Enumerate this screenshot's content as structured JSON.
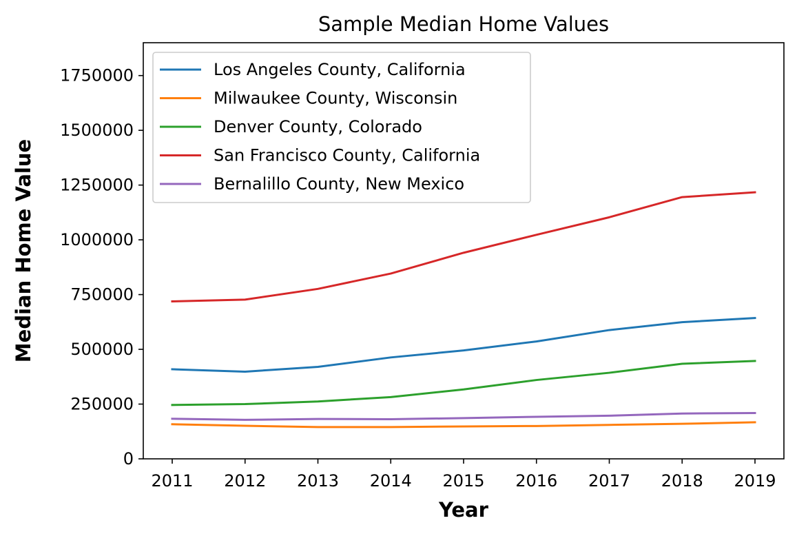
{
  "chart_data": {
    "type": "line",
    "title": "Sample Median Home Values",
    "xlabel": "Year",
    "ylabel": "Median Home Value",
    "x": [
      2011,
      2012,
      2013,
      2014,
      2015,
      2016,
      2017,
      2018,
      2019
    ],
    "ylim": [
      0,
      1900000
    ],
    "yticks": [
      0,
      250000,
      500000,
      750000,
      1000000,
      1250000,
      1500000,
      1750000
    ],
    "ytick_labels": [
      "0",
      "250000",
      "500000",
      "750000",
      "1000000",
      "1250000",
      "1500000",
      "1750000"
    ],
    "xtick_labels": [
      "2011",
      "2012",
      "2013",
      "2014",
      "2015",
      "2016",
      "2017",
      "2018",
      "2019"
    ],
    "grid": false,
    "legend_position": "top-left",
    "series": [
      {
        "name": "Los Angeles County, California",
        "color": "#1f77b4",
        "values": [
          409000,
          398000,
          420000,
          463000,
          495000,
          536000,
          588000,
          624000,
          643000
        ]
      },
      {
        "name": "Milwaukee County, Wisconsin",
        "color": "#ff7f0e",
        "values": [
          158000,
          151000,
          145000,
          145000,
          148000,
          150000,
          155000,
          160000,
          167000
        ]
      },
      {
        "name": "Denver County, Colorado",
        "color": "#2ca02c",
        "values": [
          246000,
          250000,
          262000,
          282000,
          317000,
          360000,
          393000,
          434000,
          447000
        ]
      },
      {
        "name": "San Francisco County, California",
        "color": "#d62728",
        "values": [
          719000,
          727000,
          776000,
          846000,
          941000,
          1023000,
          1103000,
          1195000,
          1217000
        ]
      },
      {
        "name": "Bernalillo County, New Mexico",
        "color": "#9467bd",
        "values": [
          183000,
          178000,
          182000,
          181000,
          186000,
          192000,
          197000,
          207000,
          209000
        ]
      }
    ]
  }
}
